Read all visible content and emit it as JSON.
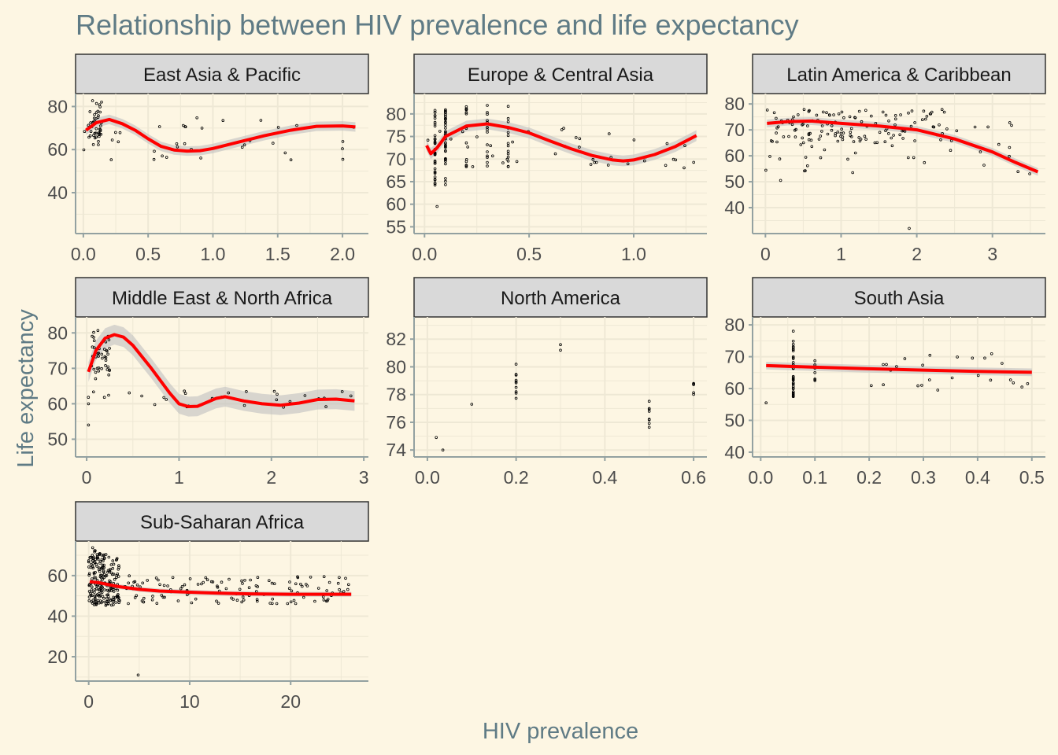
{
  "title": "Relationship between HIV prevalence and life expectancy",
  "xlabel": "HIV prevalence",
  "ylabel": "Life expectancy",
  "colors": {
    "background": "#fdf6e3",
    "panel_grid": "#eee8d5",
    "strip_fill": "#d9d9d9",
    "smooth_line": "#ff0000",
    "ribbon": "#bfbfbf",
    "points": "#000000",
    "title": "#5f7b85",
    "axis_line": "#93a1a1"
  },
  "chart_data": [
    {
      "type": "scatter",
      "facet": "East Asia & Pacific",
      "xlim": [
        -0.06,
        2.2
      ],
      "ylim": [
        21,
        86
      ],
      "xticks": [
        0,
        0.5,
        1,
        1.5,
        2
      ],
      "xtick_labels": [
        "0.0",
        "0.5",
        "1.0",
        "1.5",
        "2.0"
      ],
      "yticks": [
        40,
        60,
        80
      ],
      "ytick_labels": [
        "40",
        "60",
        "80"
      ],
      "smooth": [
        [
          0.02,
          69
        ],
        [
          0.1,
          72.5
        ],
        [
          0.2,
          74
        ],
        [
          0.3,
          72
        ],
        [
          0.4,
          69
        ],
        [
          0.5,
          65
        ],
        [
          0.6,
          61.5
        ],
        [
          0.7,
          59.8
        ],
        [
          0.8,
          59.3
        ],
        [
          0.9,
          59.5
        ],
        [
          1.0,
          60.5
        ],
        [
          1.2,
          63.5
        ],
        [
          1.4,
          66.5
        ],
        [
          1.6,
          69
        ],
        [
          1.8,
          70.8
        ],
        [
          2.0,
          71
        ],
        [
          2.1,
          70.5
        ]
      ],
      "band": 2.2
    },
    {
      "type": "scatter",
      "facet": "Europe & Central Asia",
      "xlim": [
        -0.05,
        1.35
      ],
      "ylim": [
        53.5,
        84.5
      ],
      "xticks": [
        0,
        0.5,
        1
      ],
      "xtick_labels": [
        "0.0",
        "0.5",
        "1.0"
      ],
      "yticks": [
        55,
        60,
        65,
        70,
        75,
        80
      ],
      "ytick_labels": [
        "55",
        "60",
        "65",
        "70",
        "75",
        "80"
      ],
      "smooth": [
        [
          0.01,
          73
        ],
        [
          0.03,
          71.2
        ],
        [
          0.06,
          72.5
        ],
        [
          0.1,
          75
        ],
        [
          0.2,
          77.3
        ],
        [
          0.3,
          77.8
        ],
        [
          0.4,
          77
        ],
        [
          0.5,
          75.8
        ],
        [
          0.6,
          74
        ],
        [
          0.7,
          72.3
        ],
        [
          0.8,
          70.8
        ],
        [
          0.9,
          69.8
        ],
        [
          0.95,
          69.6
        ],
        [
          1.0,
          69.8
        ],
        [
          1.1,
          71
        ],
        [
          1.2,
          72.8
        ],
        [
          1.3,
          75.2
        ]
      ],
      "band": 1.2
    },
    {
      "type": "scatter",
      "facet": "Latin America & Caribbean",
      "xlim": [
        -0.17,
        3.7
      ],
      "ylim": [
        30,
        84
      ],
      "xticks": [
        0,
        1,
        2,
        3
      ],
      "xtick_labels": [
        "0",
        "1",
        "2",
        "3"
      ],
      "yticks": [
        40,
        50,
        60,
        70,
        80
      ],
      "ytick_labels": [
        "40",
        "50",
        "60",
        "70",
        "80"
      ],
      "smooth": [
        [
          0.02,
          72.5
        ],
        [
          0.3,
          73.2
        ],
        [
          0.6,
          73.4
        ],
        [
          1.0,
          72.5
        ],
        [
          1.5,
          71.5
        ],
        [
          2.0,
          70
        ],
        [
          2.5,
          66.5
        ],
        [
          3.0,
          61.5
        ],
        [
          3.3,
          57.5
        ],
        [
          3.6,
          53.8
        ]
      ],
      "band": 1.5
    },
    {
      "type": "scatter",
      "facet": "Middle East & North Africa",
      "xlim": [
        -0.12,
        3.05
      ],
      "ylim": [
        45,
        84.5
      ],
      "xticks": [
        0,
        1,
        2,
        3
      ],
      "xtick_labels": [
        "0",
        "1",
        "2",
        "3"
      ],
      "yticks": [
        50,
        60,
        70,
        80
      ],
      "ytick_labels": [
        "50",
        "60",
        "70",
        "80"
      ],
      "smooth": [
        [
          0.02,
          69
        ],
        [
          0.1,
          75
        ],
        [
          0.2,
          78.5
        ],
        [
          0.3,
          79.5
        ],
        [
          0.4,
          78.8
        ],
        [
          0.5,
          76.5
        ],
        [
          0.7,
          70
        ],
        [
          0.9,
          63
        ],
        [
          1.0,
          60
        ],
        [
          1.1,
          59.2
        ],
        [
          1.2,
          59.3
        ],
        [
          1.4,
          61.5
        ],
        [
          1.5,
          62
        ],
        [
          1.7,
          60.8
        ],
        [
          1.9,
          60
        ],
        [
          2.1,
          59.6
        ],
        [
          2.3,
          60.2
        ],
        [
          2.5,
          61.2
        ],
        [
          2.7,
          61.3
        ],
        [
          2.9,
          60.8
        ]
      ],
      "band": 2.8
    },
    {
      "type": "scatter",
      "facet": "North America",
      "xlim": [
        -0.03,
        0.63
      ],
      "ylim": [
        73.5,
        83.6
      ],
      "xticks": [
        0,
        0.2,
        0.4,
        0.6
      ],
      "xtick_labels": [
        "0.0",
        "0.2",
        "0.4",
        "0.6"
      ],
      "yticks": [
        74,
        76,
        78,
        80,
        82
      ],
      "ytick_labels": [
        "74",
        "76",
        "78",
        "80",
        "82"
      ],
      "smooth": [],
      "band": 0
    },
    {
      "type": "scatter",
      "facet": "South Asia",
      "xlim": [
        -0.015,
        0.525
      ],
      "ylim": [
        38.5,
        82.5
      ],
      "xticks": [
        0,
        0.1,
        0.2,
        0.3,
        0.4,
        0.5
      ],
      "xtick_labels": [
        "0.0",
        "0.1",
        "0.2",
        "0.3",
        "0.4",
        "0.5"
      ],
      "yticks": [
        40,
        50,
        60,
        70,
        80
      ],
      "ytick_labels": [
        "40",
        "50",
        "60",
        "70",
        "80"
      ],
      "smooth": [
        [
          0.01,
          67.2
        ],
        [
          0.1,
          66.7
        ],
        [
          0.2,
          66.2
        ],
        [
          0.3,
          65.8
        ],
        [
          0.4,
          65.4
        ],
        [
          0.5,
          65.1
        ]
      ],
      "band": 1.2
    },
    {
      "type": "scatter",
      "facet": "Sub-Saharan Africa",
      "xlim": [
        -1.3,
        27.7
      ],
      "ylim": [
        8,
        77
      ],
      "xticks": [
        0,
        10,
        20
      ],
      "xtick_labels": [
        "0",
        "10",
        "20"
      ],
      "yticks": [
        20,
        40,
        60
      ],
      "ytick_labels": [
        "20",
        "40",
        "60"
      ],
      "smooth": [
        [
          0.1,
          57
        ],
        [
          1,
          56.5
        ],
        [
          3,
          54.5
        ],
        [
          5,
          53.2
        ],
        [
          7,
          52.4
        ],
        [
          10,
          51.8
        ],
        [
          13,
          51.3
        ],
        [
          16,
          51
        ],
        [
          20,
          50.8
        ],
        [
          23,
          50.8
        ],
        [
          26,
          50.8
        ]
      ],
      "band": 1.2
    }
  ]
}
